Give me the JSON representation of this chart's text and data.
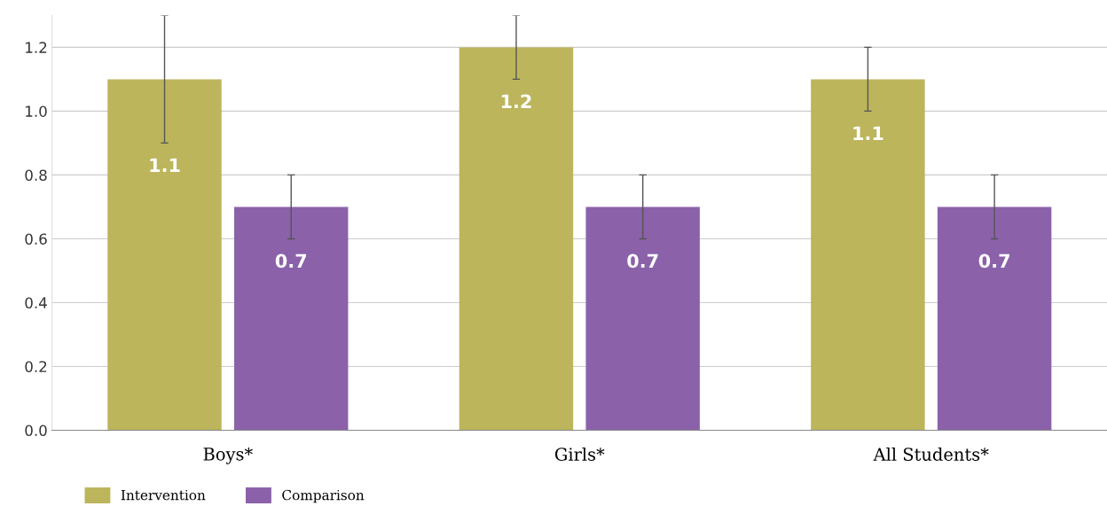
{
  "chart_data": {
    "type": "bar",
    "categories": [
      "Boys*",
      "Girls*",
      "All Students*"
    ],
    "series": [
      {
        "name": "Intervention",
        "color": "#bcb55b",
        "values": [
          1.1,
          1.2,
          1.1
        ],
        "errors": [
          [
            0.9,
            1.3
          ],
          [
            1.1,
            1.3
          ],
          [
            1.0,
            1.2
          ]
        ]
      },
      {
        "name": "Comparison",
        "color": "#8b62aa",
        "values": [
          0.7,
          0.7,
          0.7
        ],
        "errors": [
          [
            0.6,
            0.8
          ],
          [
            0.6,
            0.8
          ],
          [
            0.6,
            0.8
          ]
        ]
      }
    ],
    "ylim": [
      0,
      1.3
    ],
    "yticks": [
      {
        "value": 0,
        "label": "0.0"
      },
      0.2,
      0.4,
      0.6,
      0.8,
      {
        "value": 1,
        "label": "1.0"
      },
      1.2
    ],
    "grid": "y",
    "legend": "bottom left",
    "data_labels": true
  }
}
